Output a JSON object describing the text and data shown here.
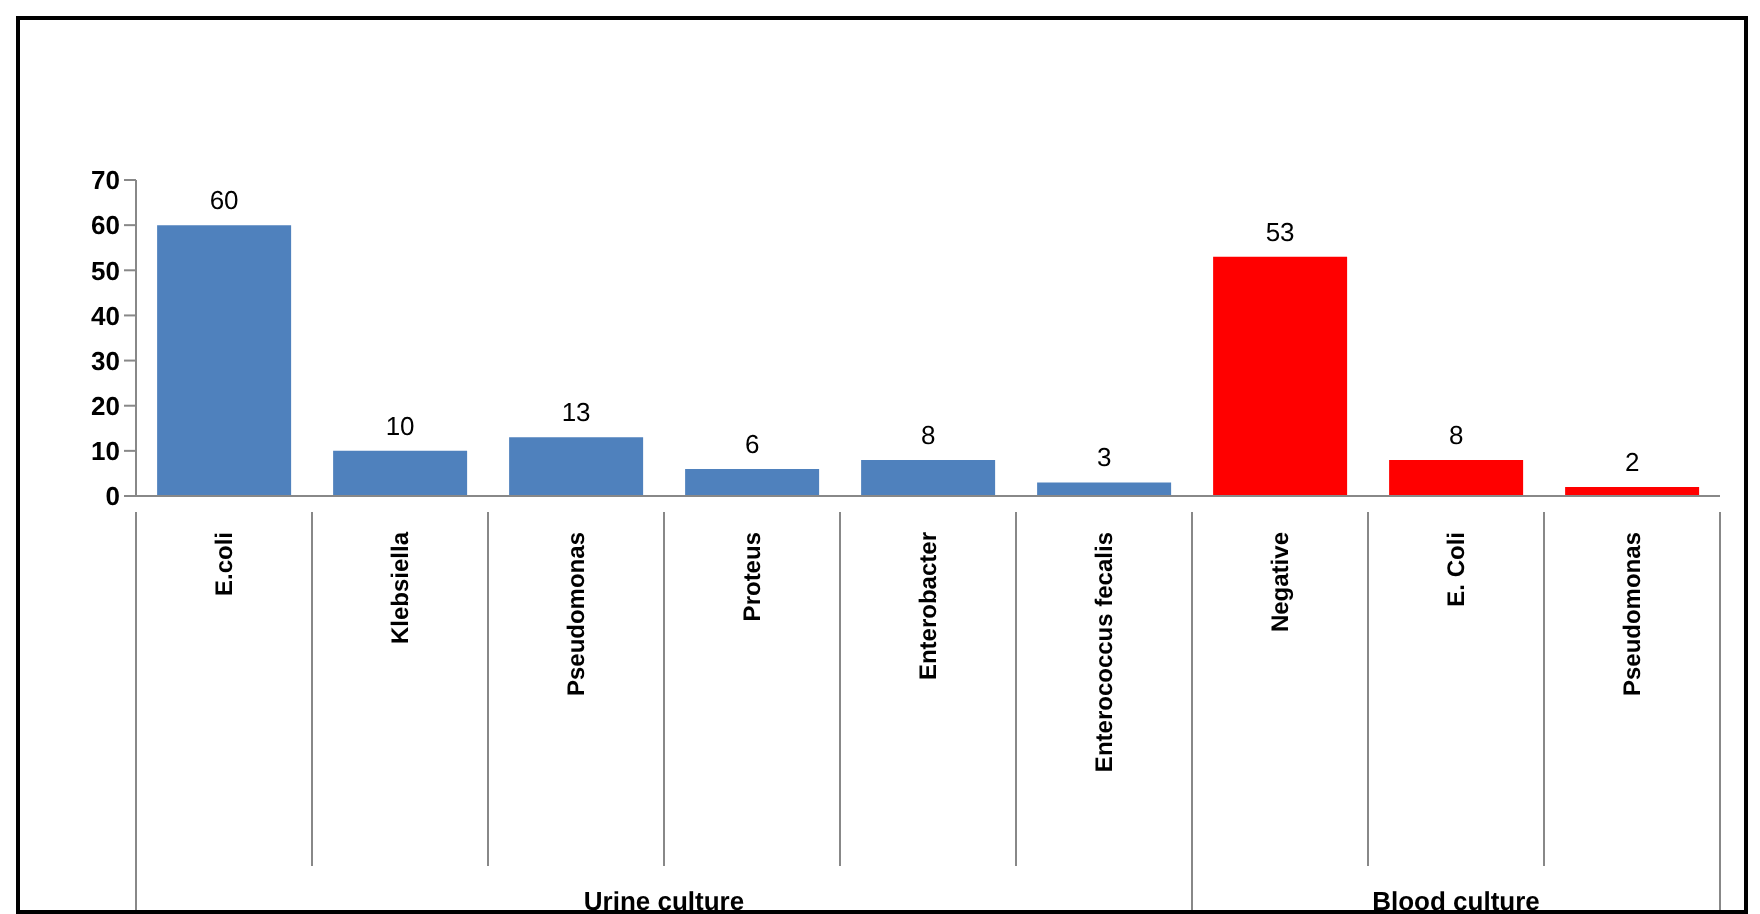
{
  "chart_data": {
    "type": "bar",
    "categories": [
      "E.coli",
      "Klebsiella",
      "Pseudomonas",
      "Proteus",
      "Enterobacter",
      "Enterococcus  fecalis",
      "Negative",
      "E. Coli",
      "Pseudomonas"
    ],
    "values": [
      60,
      10,
      13,
      6,
      8,
      3,
      53,
      8,
      2
    ],
    "colors": [
      "#4f81bd",
      "#4f81bd",
      "#4f81bd",
      "#4f81bd",
      "#4f81bd",
      "#4f81bd",
      "#ff0000",
      "#ff0000",
      "#ff0000"
    ],
    "annotations": [
      "Urine culture",
      "Blood culture"
    ],
    "ylim": [
      0,
      70
    ],
    "yticks": [
      0,
      10,
      20,
      30,
      40,
      50,
      60,
      70
    ],
    "data_labels": true
  }
}
